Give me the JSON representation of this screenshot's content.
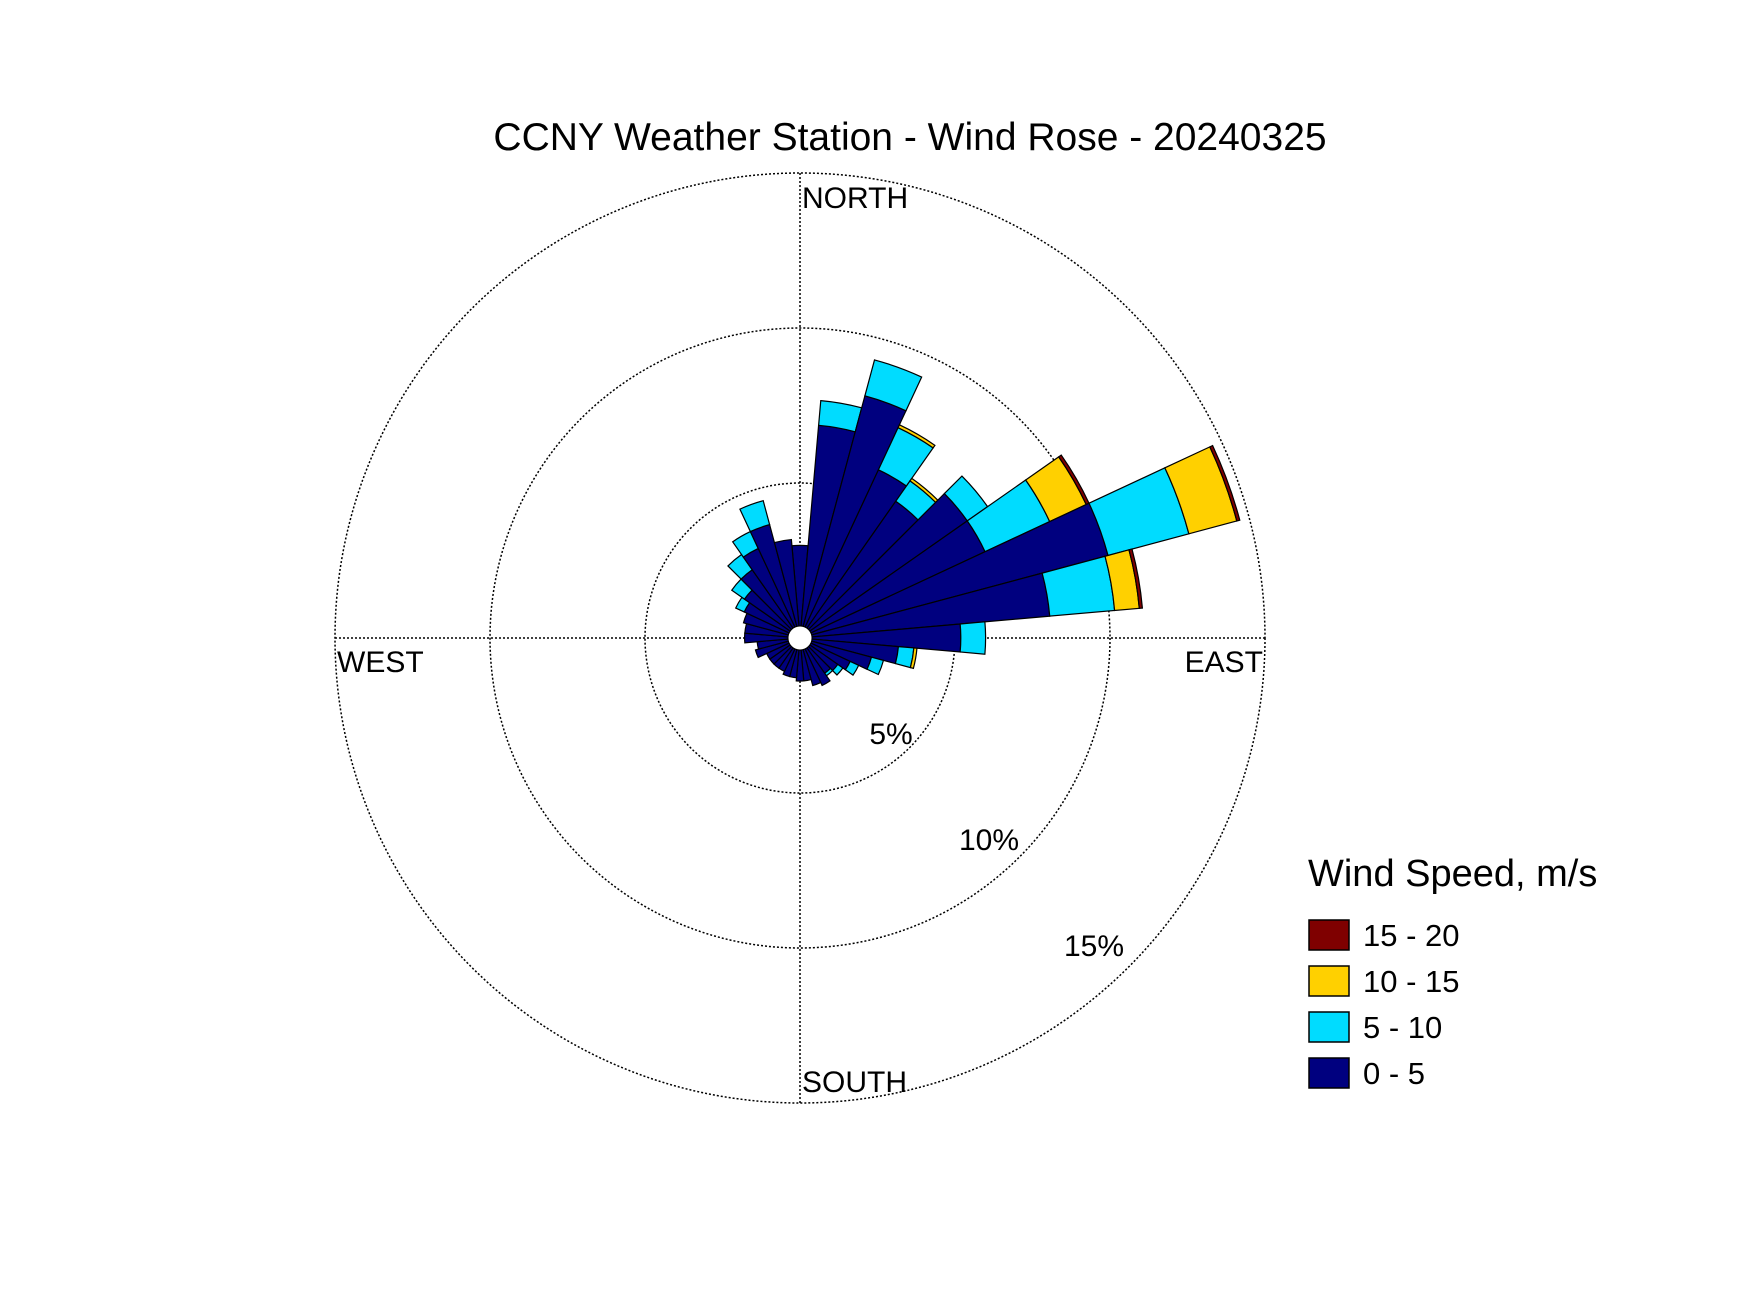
{
  "chart_data": {
    "type": "wind-rose",
    "title": "CCNY Weather Station - Wind Rose - 20240325",
    "direction_labels": {
      "north": "NORTH",
      "east": "EAST",
      "south": "SOUTH",
      "west": "WEST"
    },
    "radial_axis": {
      "unit": "percent",
      "max": 15,
      "rings": [
        5,
        10,
        15
      ],
      "ring_labels": [
        "5%",
        "10%",
        "15%"
      ]
    },
    "legend": {
      "title": "Wind Speed, m/s",
      "placement": "bottom-right",
      "entries": [
        {
          "label": "15 - 20",
          "color": "#7f0000"
        },
        {
          "label": "10 - 15",
          "color": "#ffd000"
        },
        {
          "label": "5 - 10",
          "color": "#00dcff"
        },
        {
          "label": "0 - 5",
          "color": "#00007f"
        }
      ]
    },
    "bin_order": [
      "0 - 5",
      "5 - 10",
      "10 - 15",
      "15 - 20"
    ],
    "sector_width_deg": 10,
    "sectors": [
      {
        "direction_deg": 0,
        "values": [
          2.6,
          0,
          0,
          0
        ]
      },
      {
        "direction_deg": 10,
        "values": [
          6.5,
          0.8,
          0,
          0
        ]
      },
      {
        "direction_deg": 20,
        "values": [
          7.7,
          1.2,
          0,
          0
        ]
      },
      {
        "direction_deg": 30,
        "values": [
          5.6,
          1.5,
          0.1,
          0
        ]
      },
      {
        "direction_deg": 40,
        "values": [
          5.0,
          0.8,
          0.1,
          0
        ]
      },
      {
        "direction_deg": 50,
        "values": [
          6.2,
          0.8,
          0,
          0
        ]
      },
      {
        "direction_deg": 60,
        "values": [
          6.2,
          2.3,
          1.3,
          0.1
        ]
      },
      {
        "direction_deg": 70,
        "values": [
          9.9,
          2.7,
          1.6,
          0.1
        ]
      },
      {
        "direction_deg": 80,
        "values": [
          7.7,
          2.1,
          0.8,
          0.1
        ]
      },
      {
        "direction_deg": 90,
        "values": [
          4.8,
          0.8,
          0,
          0
        ]
      },
      {
        "direction_deg": 100,
        "values": [
          2.8,
          0.5,
          0.1,
          0
        ]
      },
      {
        "direction_deg": 110,
        "values": [
          2.0,
          0.4,
          0,
          0
        ]
      },
      {
        "direction_deg": 120,
        "values": [
          1.4,
          0.3,
          0,
          0
        ]
      },
      {
        "direction_deg": 130,
        "values": [
          1.1,
          0.2,
          0,
          0
        ]
      },
      {
        "direction_deg": 140,
        "values": [
          1.0,
          0.1,
          0,
          0
        ]
      },
      {
        "direction_deg": 150,
        "values": [
          1.3,
          0,
          0,
          0
        ]
      },
      {
        "direction_deg": 160,
        "values": [
          1.2,
          0,
          0,
          0
        ]
      },
      {
        "direction_deg": 170,
        "values": [
          1.0,
          0,
          0,
          0
        ]
      },
      {
        "direction_deg": 180,
        "values": [
          1.0,
          0,
          0,
          0
        ]
      },
      {
        "direction_deg": 190,
        "values": [
          0.9,
          0,
          0,
          0
        ]
      },
      {
        "direction_deg": 200,
        "values": [
          0.9,
          0,
          0,
          0
        ]
      },
      {
        "direction_deg": 210,
        "values": [
          0.8,
          0,
          0,
          0
        ]
      },
      {
        "direction_deg": 220,
        "values": [
          0.8,
          0,
          0,
          0
        ]
      },
      {
        "direction_deg": 230,
        "values": [
          0.8,
          0,
          0,
          0
        ]
      },
      {
        "direction_deg": 240,
        "values": [
          0.8,
          0,
          0,
          0
        ]
      },
      {
        "direction_deg": 250,
        "values": [
          1.1,
          0,
          0,
          0
        ]
      },
      {
        "direction_deg": 260,
        "values": [
          1.0,
          0,
          0,
          0
        ]
      },
      {
        "direction_deg": 270,
        "values": [
          1.4,
          0,
          0,
          0
        ]
      },
      {
        "direction_deg": 280,
        "values": [
          1.4,
          0,
          0,
          0
        ]
      },
      {
        "direction_deg": 290,
        "values": [
          1.5,
          0,
          0,
          0
        ]
      },
      {
        "direction_deg": 300,
        "values": [
          1.6,
          0.3,
          0,
          0
        ]
      },
      {
        "direction_deg": 310,
        "values": [
          1.8,
          0.5,
          0,
          0
        ]
      },
      {
        "direction_deg": 320,
        "values": [
          2.3,
          0.6,
          0,
          0
        ]
      },
      {
        "direction_deg": 330,
        "values": [
          2.8,
          0.6,
          0,
          0
        ]
      },
      {
        "direction_deg": 340,
        "values": [
          3.4,
          0.8,
          0,
          0
        ]
      },
      {
        "direction_deg": 350,
        "values": [
          2.8,
          0,
          0,
          0
        ]
      }
    ]
  }
}
